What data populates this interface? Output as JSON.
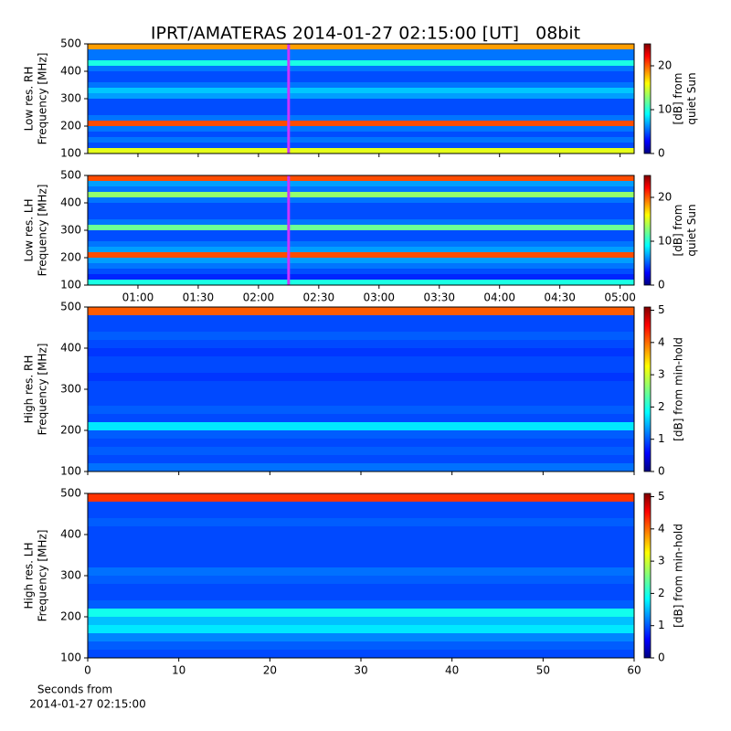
{
  "figure_title": "IPRT/AMATERAS 2014-01-27 02:15:00 [UT]   08bit",
  "chart_data": [
    {
      "type": "heatmap",
      "ylabel": [
        "Low res. RH",
        "Frequency [MHz]"
      ],
      "xlim": [
        35,
        307
      ],
      "xticks": [
        60,
        90,
        120,
        150,
        180,
        210,
        240,
        270,
        300
      ],
      "ylim": [
        100,
        500
      ],
      "yticks": [
        100,
        200,
        300,
        400,
        500
      ],
      "freq_edges": [
        100,
        120,
        140,
        160,
        180,
        200,
        220,
        240,
        260,
        280,
        300,
        320,
        340,
        360,
        380,
        400,
        420,
        440,
        460,
        480,
        500
      ],
      "values": [
        15,
        5,
        6,
        5,
        6,
        20,
        6,
        5,
        5,
        5,
        7,
        8,
        6,
        5,
        5,
        6,
        10,
        6,
        6,
        18
      ],
      "cursor_x": 135,
      "cursor_color": "#cc33ff",
      "clim": [
        0,
        25
      ],
      "cticks": [
        0,
        10,
        20
      ],
      "colorbar_label": [
        "[dB] from",
        "quiet Sun"
      ]
    },
    {
      "type": "heatmap",
      "ylabel": [
        "Low res. LH",
        "Frequency [MHz]"
      ],
      "xlim": [
        35,
        307
      ],
      "xticks": [
        {
          "value": 60,
          "label": "01:00"
        },
        {
          "value": 90,
          "label": "01:30"
        },
        {
          "value": 120,
          "label": "02:00"
        },
        {
          "value": 150,
          "label": "02:30"
        },
        {
          "value": 180,
          "label": "03:00"
        },
        {
          "value": 210,
          "label": "03:30"
        },
        {
          "value": 240,
          "label": "04:00"
        },
        {
          "value": 270,
          "label": "04:30"
        },
        {
          "value": 300,
          "label": "05:00"
        }
      ],
      "ylim": [
        100,
        500
      ],
      "yticks": [
        100,
        200,
        300,
        400,
        500
      ],
      "freq_edges": [
        100,
        120,
        140,
        160,
        180,
        200,
        220,
        240,
        260,
        280,
        300,
        320,
        340,
        360,
        380,
        400,
        420,
        440,
        460,
        480,
        500
      ],
      "values": [
        10,
        4,
        5,
        6,
        7,
        20,
        7,
        6,
        5,
        5,
        12,
        6,
        5,
        5,
        5,
        6,
        13,
        6,
        7,
        20
      ],
      "cursor_x": 135,
      "cursor_color": "#cc33ff",
      "clim": [
        0,
        25
      ],
      "cticks": [
        0,
        10,
        20
      ],
      "colorbar_label": [
        "[dB] from",
        "quiet Sun"
      ]
    },
    {
      "type": "heatmap",
      "ylabel": [
        "High res. RH",
        "Frequency [MHz]"
      ],
      "xlim": [
        0,
        60
      ],
      "xticks": [
        0,
        10,
        20,
        30,
        40,
        50,
        60
      ],
      "ylim": [
        100,
        500
      ],
      "yticks": [
        100,
        200,
        300,
        400,
        500
      ],
      "freq_edges": [
        100,
        120,
        140,
        160,
        180,
        200,
        220,
        240,
        260,
        280,
        300,
        320,
        340,
        360,
        380,
        400,
        420,
        440,
        460,
        480,
        500
      ],
      "values": [
        1.2,
        1,
        1.1,
        1,
        1.1,
        1.8,
        1,
        1.1,
        1,
        1,
        1,
        0.9,
        1,
        1,
        0.9,
        1,
        1.1,
        1,
        1,
        4
      ],
      "clim": [
        0,
        5.1
      ],
      "cticks": [
        0,
        1,
        2,
        3,
        4,
        5
      ],
      "colorbar_label": [
        "[dB] from min-hold"
      ]
    },
    {
      "type": "heatmap",
      "ylabel": [
        "High res. LH",
        "Frequency [MHz]"
      ],
      "xlim": [
        0,
        60
      ],
      "xticks": [
        0,
        10,
        20,
        30,
        40,
        50,
        60
      ],
      "ylim": [
        100,
        500
      ],
      "yticks": [
        100,
        200,
        300,
        400,
        500
      ],
      "freq_edges": [
        100,
        120,
        140,
        160,
        180,
        200,
        220,
        240,
        260,
        280,
        300,
        320,
        340,
        360,
        380,
        400,
        420,
        440,
        460,
        480,
        500
      ],
      "values": [
        1,
        1.1,
        1.3,
        1.8,
        1.6,
        2,
        1.1,
        1,
        1,
        1.1,
        1.2,
        1,
        1,
        1,
        1,
        1,
        1.1,
        1,
        1,
        4.2
      ],
      "clim": [
        0,
        5.1
      ],
      "cticks": [
        0,
        1,
        2,
        3,
        4,
        5
      ],
      "colorbar_label": [
        "[dB] from min-hold"
      ]
    }
  ],
  "xlabel": [
    "Seconds from",
    "2014-01-27 02:15:00"
  ]
}
